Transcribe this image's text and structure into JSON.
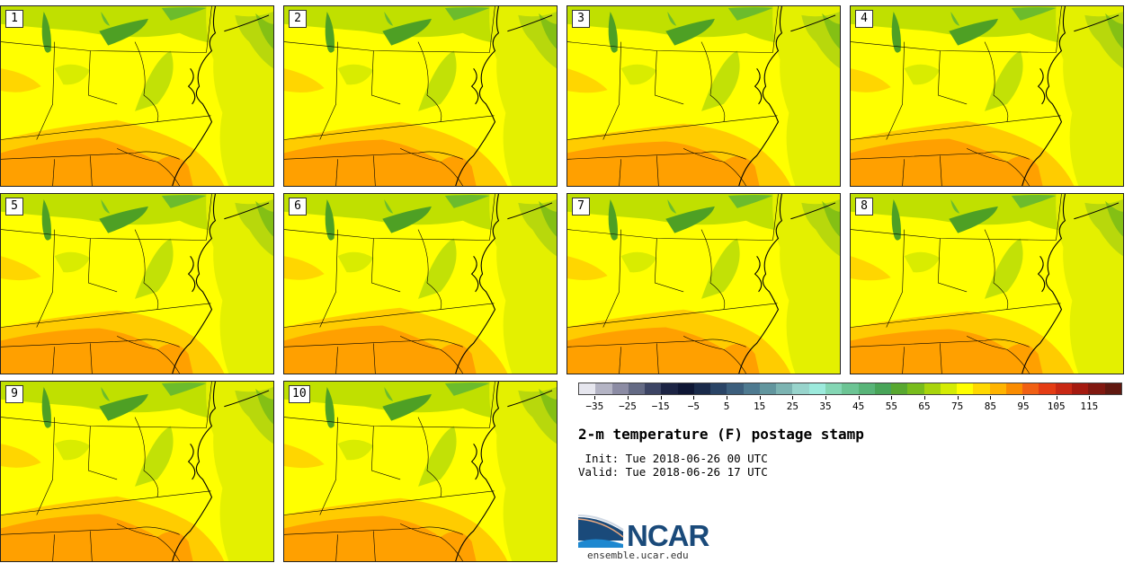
{
  "panels": [
    {
      "label": "1"
    },
    {
      "label": "2"
    },
    {
      "label": "3"
    },
    {
      "label": "4"
    },
    {
      "label": "5"
    },
    {
      "label": "6"
    },
    {
      "label": "7"
    },
    {
      "label": "8"
    },
    {
      "label": "9"
    },
    {
      "label": "10"
    }
  ],
  "colorbar": {
    "colors": [
      "#e6e6ee",
      "#b4b4c4",
      "#8c8ca4",
      "#646a84",
      "#3c4464",
      "#1c2444",
      "#0e1634",
      "#1a2a4a",
      "#2a4466",
      "#3c5e7c",
      "#4e7a90",
      "#62969e",
      "#7cb4b2",
      "#98d4cc",
      "#9ceadc",
      "#84d6b4",
      "#6cc494",
      "#58b478",
      "#48a458",
      "#58a830",
      "#78bc1c",
      "#a8d40c",
      "#d4ec04",
      "#ffff00",
      "#ffd800",
      "#ffb400",
      "#fa8c00",
      "#f06014",
      "#e43c14",
      "#c82814",
      "#a41a10",
      "#801810",
      "#601810"
    ],
    "tick_values": [
      -35,
      -25,
      -15,
      -5,
      5,
      15,
      25,
      35,
      45,
      55,
      65,
      75,
      85,
      95,
      105,
      115
    ],
    "tick_labels": [
      "−35",
      "−25",
      "−15",
      "−5",
      "5",
      "15",
      "25",
      "35",
      "45",
      "55",
      "65",
      "75",
      "85",
      "95",
      "105",
      "115"
    ],
    "min": -40,
    "max": 125
  },
  "title": "2-m temperature (F) postage stamp",
  "init_line": " Init: Tue 2018-06-26 00 UTC",
  "valid_line": "Valid: Tue 2018-06-26 17 UTC",
  "logo_text": "NCAR",
  "site": "ensemble.ucar.edu",
  "map_colors": {
    "lake": "#4ea024",
    "lake_light": "#6cbc2c",
    "green_mid": "#c0e000",
    "green_high": "#a8d408",
    "atlantic": "#e4f000",
    "yellow": "#ffff00",
    "orange_light": "#ffcc00",
    "orange": "#ffa000",
    "border": "#000000"
  }
}
